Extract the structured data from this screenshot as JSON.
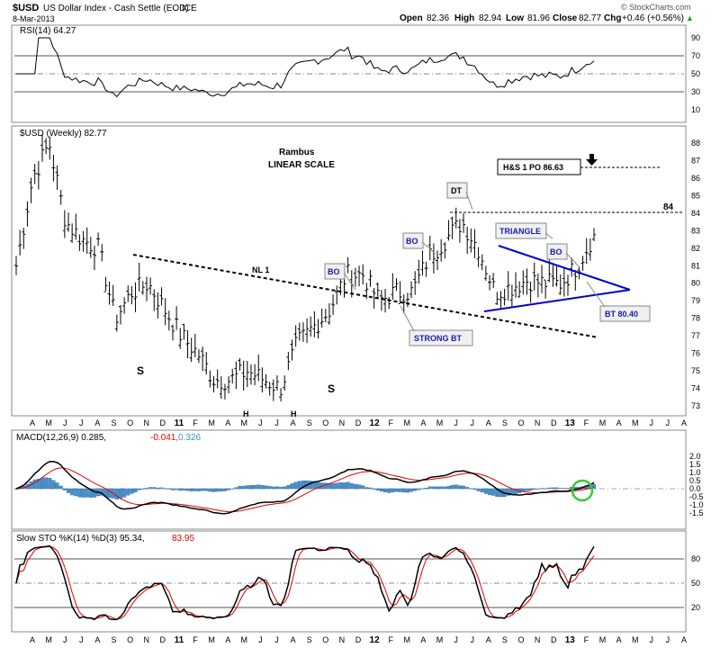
{
  "header": {
    "symbol": "$USD",
    "name": "US Dollar Index - Cash Settle (EOD)",
    "exchange": "ICE",
    "date": "8-Mar-2013",
    "open_label": "Open",
    "open": "82.36",
    "high_label": "High",
    "high": "82.94",
    "low_label": "Low",
    "low": "81.96",
    "close_label": "Close",
    "close": "82.77",
    "chg_label": "Chg",
    "chg": "+0.46 (+0.56%)",
    "up_arrow": "▲",
    "watermark": "© StockCharts.com"
  },
  "rsi": {
    "label": "RSI(14) 64.27",
    "ticks": [
      10,
      30,
      50,
      70,
      90
    ],
    "overbought": 70,
    "oversold": 30,
    "midline": 50,
    "current": 64.27
  },
  "price": {
    "label": "$USD (Weekly) 82.77",
    "ticks": [
      73,
      74,
      75,
      76,
      77,
      78,
      79,
      80,
      81,
      82,
      83,
      84,
      85,
      86,
      87,
      88
    ],
    "last": 82.77
  },
  "annotations": {
    "rambus": "Rambus",
    "scale": "LINEAR SCALE",
    "hs_target": "H&S 1 PO 86.63",
    "level_84": "84",
    "dt": "DT",
    "bo1": "BO",
    "bo2": "BO",
    "bo3": "BO",
    "triangle": "TRIANGLE",
    "strong_bt": "STRONG BT",
    "bt": "BT 80.40",
    "nl": "NL 1",
    "s1": "S",
    "h1": "H",
    "h2": "H",
    "s2": "S"
  },
  "macd": {
    "label_prefix": "MACD(12,26,9) 0.285,",
    "signal_value": "-0.041,",
    "hist_value": "0.326",
    "ticks": [
      "2.0",
      "1.5",
      "1.0",
      "0.5",
      "0.0",
      "-0.5",
      "-1.0",
      "-1.5"
    ]
  },
  "sto": {
    "label_prefix": "Slow STO %K(14) %D(3) 95.34,",
    "d_value": "83.95",
    "ticks": [
      20,
      50,
      80
    ]
  },
  "x_axis": {
    "labels_top": [
      "A",
      "M",
      "J",
      "J",
      "A",
      "S",
      "O",
      "N",
      "D",
      "11",
      "F",
      "M",
      "A",
      "M",
      "J",
      "J",
      "A",
      "S",
      "O",
      "N",
      "D",
      "12",
      "F",
      "M",
      "A",
      "M",
      "J",
      "J",
      "A",
      "S",
      "O",
      "N",
      "D",
      "13",
      "F",
      "M",
      "A",
      "M",
      "J",
      "J",
      "A"
    ],
    "labels_bottom": [
      "A",
      "M",
      "J",
      "J",
      "A",
      "S",
      "O",
      "N",
      "D",
      "11",
      "F",
      "M",
      "A",
      "M",
      "J",
      "J",
      "A",
      "S",
      "O",
      "N",
      "D",
      "12",
      "F",
      "M",
      "A",
      "M",
      "J",
      "J",
      "A",
      "S",
      "O",
      "N",
      "D",
      "13",
      "F",
      "M",
      "A",
      "M",
      "J",
      "J",
      "A"
    ]
  },
  "colors": {
    "price_bar": "#000000",
    "macd_line": "#000000",
    "macd_signal": "#e00000",
    "macd_hist": "#4a90c8",
    "sto_k": "#000000",
    "sto_d": "#e00000",
    "rsi_line": "#000000",
    "rsi_fill_ob": "#3a7d3a",
    "triangle": "#0000cc",
    "bo_text": "#1a1aaa",
    "circle": "#33cc33"
  },
  "chart_data": {
    "type": "line",
    "title": "$USD US Dollar Index - Cash Settle (EOD) ICE",
    "xlabel": "",
    "ylabel": "",
    "x": [
      "2010-04",
      "2010-05",
      "2010-06",
      "2010-07",
      "2010-08",
      "2010-09",
      "2010-10",
      "2010-11",
      "2010-12",
      "2011-01",
      "2011-02",
      "2011-03",
      "2011-04",
      "2011-05",
      "2011-06",
      "2011-07",
      "2011-08",
      "2011-09",
      "2011-10",
      "2011-11",
      "2011-12",
      "2012-01",
      "2012-02",
      "2012-03",
      "2012-04",
      "2012-05",
      "2012-06",
      "2012-07",
      "2012-08",
      "2012-09",
      "2012-10",
      "2012-11",
      "2012-12",
      "2013-01",
      "2013-02",
      "2013-03"
    ],
    "series": [
      {
        "name": "$USD (Weekly)",
        "values": [
          81.0,
          86.0,
          88.0,
          83.5,
          82.5,
          82.0,
          78.0,
          79.5,
          80.0,
          78.5,
          77.0,
          76.0,
          74.5,
          74.5,
          75.0,
          74.5,
          74.0,
          76.5,
          77.5,
          78.5,
          80.5,
          80.5,
          79.0,
          79.5,
          79.5,
          81.5,
          82.5,
          83.5,
          82.0,
          79.5,
          79.8,
          80.2,
          80.0,
          80.0,
          81.0,
          82.77
        ]
      }
    ],
    "ylim": [
      73,
      88.5
    ]
  }
}
